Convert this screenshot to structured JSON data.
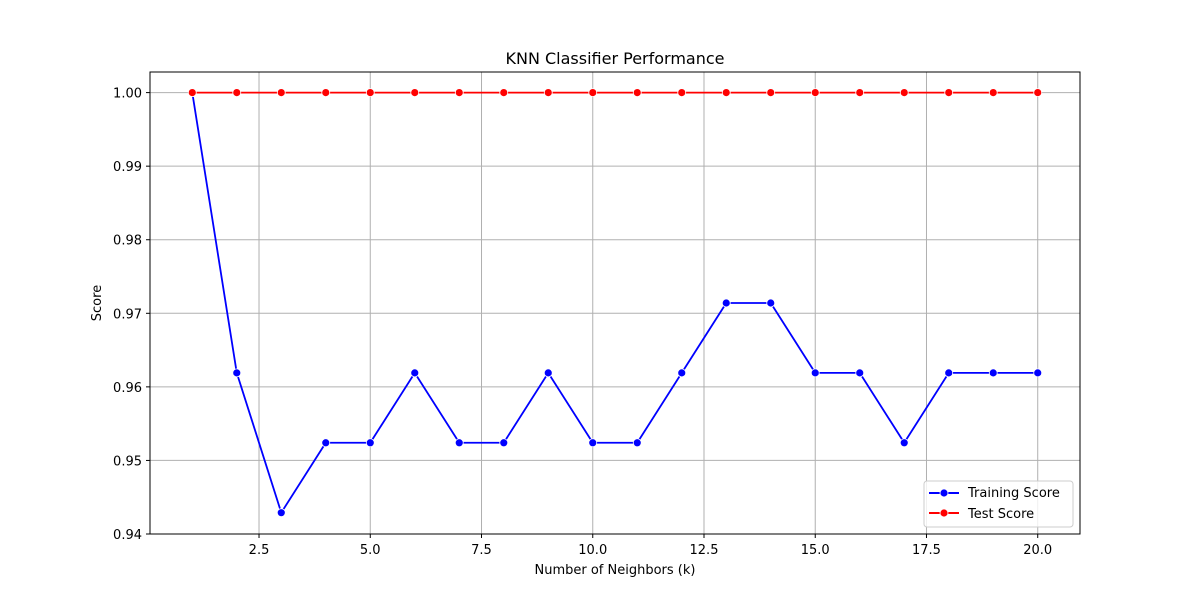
{
  "chart_data": {
    "type": "line",
    "title": "KNN Classifier Performance",
    "xlabel": "Number of Neighbors (k)",
    "ylabel": "Score",
    "xlim": [
      0.05,
      20.95
    ],
    "ylim": [
      0.94,
      1.0028
    ],
    "xticks": [
      2.5,
      5.0,
      7.5,
      10.0,
      12.5,
      15.0,
      17.5,
      20.0
    ],
    "xtick_labels": [
      "2.5",
      "5.0",
      "7.5",
      "10.0",
      "12.5",
      "15.0",
      "17.5",
      "20.0"
    ],
    "yticks": [
      0.94,
      0.95,
      0.96,
      0.97,
      0.98,
      0.99,
      1.0
    ],
    "ytick_labels": [
      "0.94",
      "0.95",
      "0.96",
      "0.97",
      "0.98",
      "0.99",
      "1.00"
    ],
    "grid": true,
    "legend_position": "lower-right",
    "x": [
      1,
      2,
      3,
      4,
      5,
      6,
      7,
      8,
      9,
      10,
      11,
      12,
      13,
      14,
      15,
      16,
      17,
      18,
      19,
      20
    ],
    "series": [
      {
        "name": "Training Score",
        "color": "#0000ff",
        "marker": "circle",
        "values": [
          1.0,
          0.9619,
          0.9429,
          0.9524,
          0.9524,
          0.9619,
          0.9524,
          0.9524,
          0.9619,
          0.9524,
          0.9524,
          0.9619,
          0.9714,
          0.9714,
          0.9619,
          0.9619,
          0.9524,
          0.9619,
          0.9619,
          0.9619
        ]
      },
      {
        "name": "Test Score",
        "color": "#ff0000",
        "marker": "circle",
        "values": [
          1.0,
          1.0,
          1.0,
          1.0,
          1.0,
          1.0,
          1.0,
          1.0,
          1.0,
          1.0,
          1.0,
          1.0,
          1.0,
          1.0,
          1.0,
          1.0,
          1.0,
          1.0,
          1.0,
          1.0
        ]
      }
    ]
  }
}
